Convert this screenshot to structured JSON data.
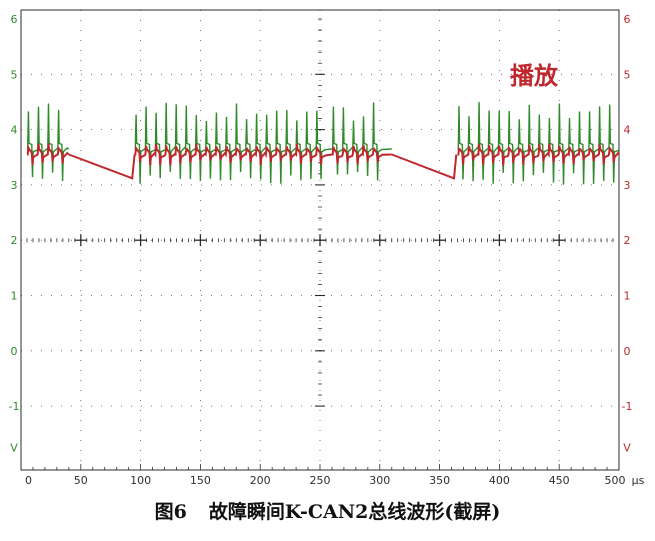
{
  "chart_data": {
    "type": "line",
    "y_ticks": [
      "6",
      "5",
      "4",
      "3",
      "2",
      "1",
      "0",
      "-1",
      "V"
    ],
    "x_ticks": [
      "0",
      "50",
      "100",
      "150",
      "200",
      "250",
      "300",
      "350",
      "400",
      "450",
      "500"
    ],
    "x_unit": "μs",
    "xlim": [
      0,
      500
    ],
    "ylim": [
      -2,
      6
    ],
    "annotation": "播放",
    "grid": "dotted",
    "series": [
      {
        "color": "#2f8a2a",
        "rest_level": 3.65,
        "spike_high": 4.5,
        "spike_low": 3.0
      },
      {
        "color": "#c0272d",
        "rest_level": 3.55,
        "spike_high": 3.75,
        "spike_low": 3.35
      }
    ],
    "burst_segments": [
      [
        5,
        40
      ],
      [
        95,
        260
      ],
      [
        260,
        310
      ],
      [
        365,
        500
      ]
    ],
    "decay_segments": [
      [
        40,
        93,
        3.55,
        3.12
      ],
      [
        310,
        362,
        3.55,
        3.12
      ]
    ]
  },
  "caption": {
    "figure_label": "图6",
    "title": "故障瞬间K-CAN2总线波形(截屏)"
  },
  "colors": {
    "grid": "#2b2b2b",
    "axis_label_green": "#2f8a2a",
    "axis_label_red": "#c0272d",
    "annotation": "#c0272d"
  }
}
